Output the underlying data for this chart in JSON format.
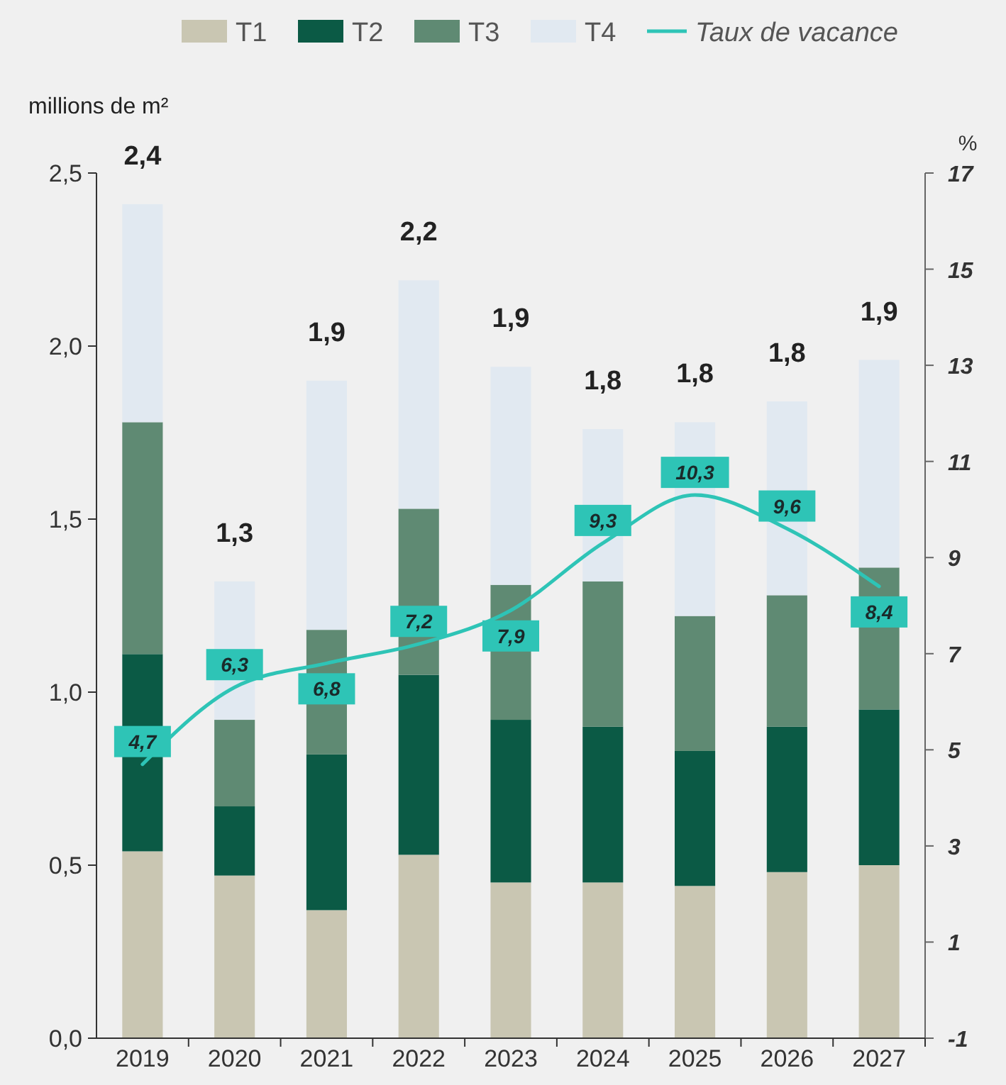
{
  "chart_data": {
    "type": "bar",
    "stacked": true,
    "ylabel": "millions de m²",
    "y2label": "%",
    "categories": [
      "2019",
      "2020",
      "2021",
      "2022",
      "2023",
      "2024",
      "2025",
      "2026",
      "2027"
    ],
    "series": [
      {
        "name": "T1",
        "color": "#c9c6b2",
        "values": [
          0.54,
          0.47,
          0.37,
          0.53,
          0.45,
          0.45,
          0.44,
          0.48,
          0.5
        ]
      },
      {
        "name": "T2",
        "color": "#0b5a45",
        "values": [
          0.57,
          0.2,
          0.45,
          0.52,
          0.47,
          0.45,
          0.39,
          0.42,
          0.45
        ]
      },
      {
        "name": "T3",
        "color": "#5f8a73",
        "values": [
          0.67,
          0.25,
          0.36,
          0.48,
          0.39,
          0.42,
          0.39,
          0.38,
          0.41
        ]
      },
      {
        "name": "T4",
        "color": "#e1e9f1",
        "values": [
          0.63,
          0.4,
          0.72,
          0.66,
          0.63,
          0.44,
          0.56,
          0.56,
          0.6
        ]
      },
      {
        "name": "Taux de vacance",
        "type": "line",
        "axis": "y2",
        "color": "#2ec4b6",
        "values": [
          4.7,
          6.3,
          6.8,
          7.2,
          7.9,
          9.3,
          10.3,
          9.6,
          8.4
        ],
        "value_labels": [
          "4,7",
          "6,3",
          "6,8",
          "7,2",
          "7,9",
          "9,3",
          "10,3",
          "9,6",
          "8,4"
        ]
      }
    ],
    "totals": [
      "2,4",
      "1,3",
      "1,9",
      "2,2",
      "1,9",
      "1,8",
      "1,8",
      "1,8",
      "1,9"
    ],
    "ylim": [
      0,
      2.5
    ],
    "yticks": [
      {
        "value": 0,
        "label": "0,0"
      },
      {
        "value": 0.5,
        "label": "0,5"
      },
      {
        "value": 1,
        "label": "1,0"
      },
      {
        "value": 1.5,
        "label": "1,5"
      },
      {
        "value": 2,
        "label": "2,0"
      },
      {
        "value": 2.5,
        "label": "2,5"
      }
    ],
    "y2lim": [
      -1,
      17
    ],
    "y2ticks": [
      -1,
      1,
      3,
      5,
      7,
      9,
      11,
      13,
      15,
      17
    ],
    "legend": "top",
    "grid": false
  }
}
